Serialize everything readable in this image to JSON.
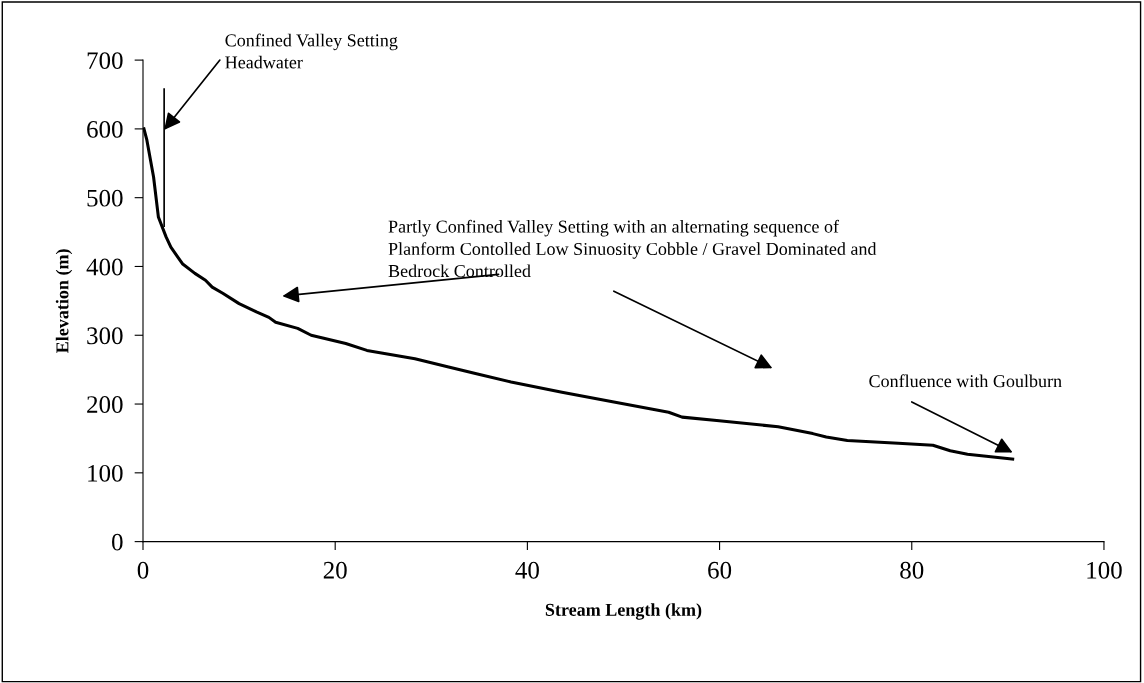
{
  "chart_data": {
    "type": "line",
    "xlabel": "Stream Length (km)",
    "ylabel": "Elevation (m)",
    "xlim": [
      0,
      100
    ],
    "ylim": [
      0,
      700
    ],
    "xticks": [
      0,
      20,
      40,
      60,
      80,
      100
    ],
    "yticks": [
      0,
      100,
      200,
      300,
      400,
      500,
      600,
      700
    ],
    "grid": false,
    "legend": false,
    "marker": "none",
    "line_style": "solid",
    "series": [
      {
        "color": "#000000",
        "x": [
          0.1,
          0.4,
          1.1,
          1.6,
          2.4,
          2.9,
          4.1,
          5.4,
          6.5,
          7.2,
          8.3,
          10.0,
          11.8,
          13.1,
          13.8,
          16.1,
          17.5,
          21.1,
          23.3,
          28.3,
          31.8,
          34.7,
          38.3,
          43.6,
          49.0,
          54.7,
          56.1,
          59.7,
          66.1,
          69.7,
          71.1,
          73.3,
          78.6,
          82.2,
          84.0,
          85.8,
          90.5
        ],
        "values": [
          600,
          584,
          530,
          472,
          443,
          428,
          404,
          390,
          380,
          370,
          361,
          346,
          334,
          326,
          319,
          310,
          300,
          288,
          278,
          266,
          254,
          244,
          232,
          217,
          203,
          188,
          181,
          176,
          167,
          157,
          152,
          147,
          143,
          140,
          132,
          127,
          120
        ]
      }
    ],
    "annotations": [
      "Confined Valley Setting\nHeadwater",
      "Partly Confined Valley Setting with an alternating sequence of\nPlanform Contolled Low Sinuosity Cobble / Gravel Dominated and\nBedrock Controlled",
      "Confluence with Goulburn"
    ]
  }
}
